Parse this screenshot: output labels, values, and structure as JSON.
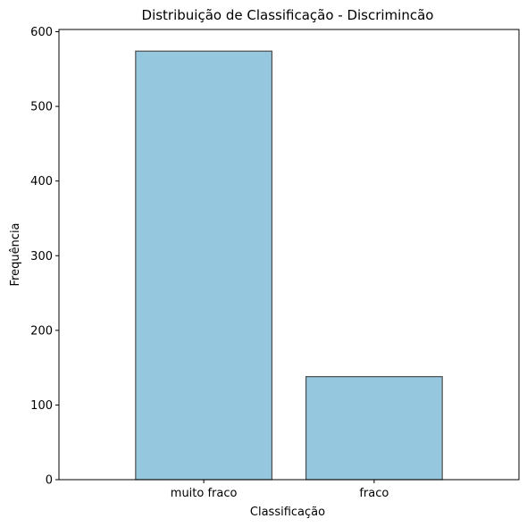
{
  "chart_data": {
    "type": "bar",
    "title": "Distribuição de Classificação - Discrimincão",
    "xlabel": "Classificação",
    "ylabel": "Frequência",
    "categories": [
      "muito fraco",
      "fraco"
    ],
    "values": [
      574,
      138
    ],
    "ylim": [
      0,
      603
    ],
    "yticks": [
      0,
      100,
      200,
      300,
      400,
      500,
      600
    ],
    "bar_color": "#95c8de",
    "bar_edge_color": "#4d4d4d",
    "grid": false,
    "legend": "none"
  }
}
